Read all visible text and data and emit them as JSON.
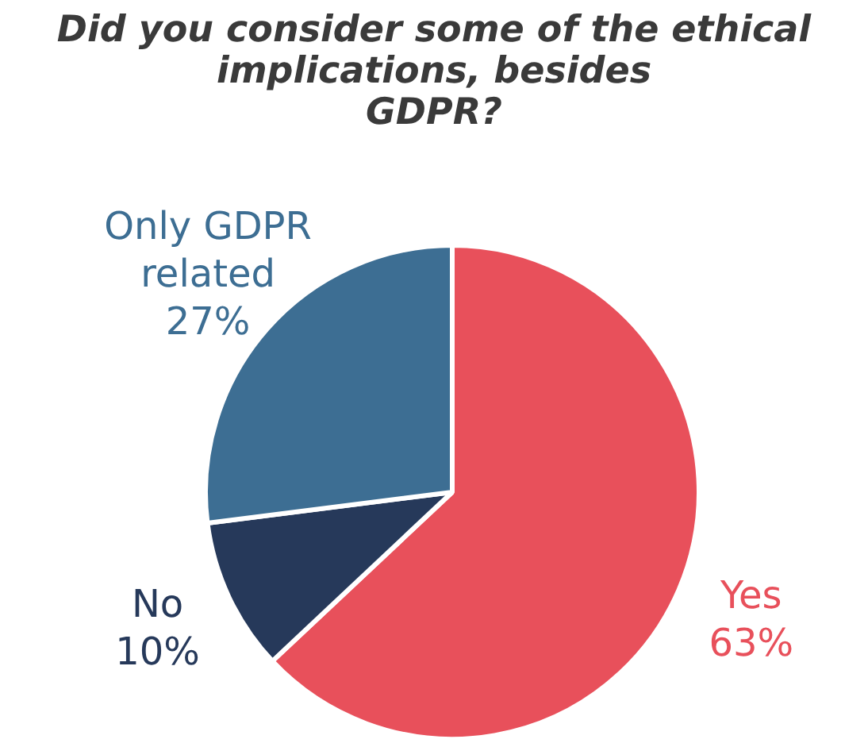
{
  "chart_data": {
    "type": "pie",
    "title": "Did you consider some of the ethical\nimplications, besides\nGDPR?",
    "categories": [
      "Yes",
      "No",
      "Only GDPR related"
    ],
    "values": [
      63,
      10,
      27
    ],
    "value_labels": [
      "63%",
      "10%",
      "27%"
    ],
    "colors": [
      "#e8505b",
      "#26395a",
      "#3d6e93"
    ],
    "legend": false
  }
}
